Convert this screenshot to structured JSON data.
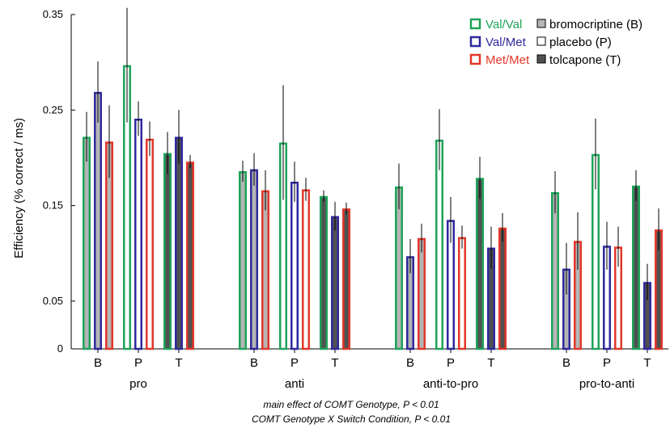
{
  "chart_data": {
    "type": "bar",
    "ylabel": "Efficiency (% correct / ms)",
    "ylim": [
      0,
      0.35
    ],
    "yticks": [
      "0",
      "0.05",
      "0.15",
      "0.25",
      "0.35"
    ],
    "grid": false,
    "legend_position": "top-right",
    "groups": [
      "pro",
      "anti",
      "anti-to-pro",
      "pro-to-anti"
    ],
    "drugs": [
      "B",
      "P",
      "T"
    ],
    "genotype_series": [
      {
        "name": "Val/Val",
        "color": "#1fa35a"
      },
      {
        "name": "Val/Met",
        "color": "#2e2a9c"
      },
      {
        "name": "Met/Met",
        "color": "#e2372a"
      }
    ],
    "drug_legend": [
      {
        "name": "bromocriptine (B)",
        "fill": "#b5b5b5"
      },
      {
        "name": "placebo (P)",
        "fill": "#ffffff"
      },
      {
        "name": "tolcapone (T)",
        "fill": "#505050"
      }
    ],
    "series": [
      {
        "name": "Val/Val",
        "values": [
          [
            0.222,
            0.297,
            0.205
          ],
          [
            0.186,
            0.216,
            0.16
          ],
          [
            0.17,
            0.219,
            0.179
          ],
          [
            0.164,
            0.204,
            0.171
          ]
        ],
        "err": [
          [
            0.026,
            0.06,
            0.022
          ],
          [
            0.011,
            0.06,
            0.006
          ],
          [
            0.024,
            0.032,
            0.022
          ],
          [
            0.022,
            0.037,
            0.016
          ]
        ]
      },
      {
        "name": "Val/Met",
        "values": [
          [
            0.269,
            0.241,
            0.222
          ],
          [
            0.188,
            0.175,
            0.139
          ],
          [
            0.097,
            0.135,
            0.106
          ],
          [
            0.084,
            0.108,
            0.07
          ]
        ],
        "err": [
          [
            0.032,
            0.018,
            0.028
          ],
          [
            0.017,
            0.021,
            0.015
          ],
          [
            0.018,
            0.024,
            0.022
          ],
          [
            0.027,
            0.025,
            0.019
          ]
        ]
      },
      {
        "name": "Met/Met",
        "values": [
          [
            0.217,
            0.22,
            0.196
          ],
          [
            0.166,
            0.167,
            0.147
          ],
          [
            0.116,
            0.117,
            0.127
          ],
          [
            0.113,
            0.107,
            0.125
          ]
        ],
        "err": [
          [
            0.038,
            0.018,
            0.007
          ],
          [
            0.021,
            0.012,
            0.006
          ],
          [
            0.015,
            0.012,
            0.015
          ],
          [
            0.03,
            0.021,
            0.022
          ]
        ]
      }
    ]
  },
  "annotations": [
    "main effect of COMT Genotype, P < 0.01",
    "COMT Genotype X Switch Condition, P < 0.01"
  ]
}
